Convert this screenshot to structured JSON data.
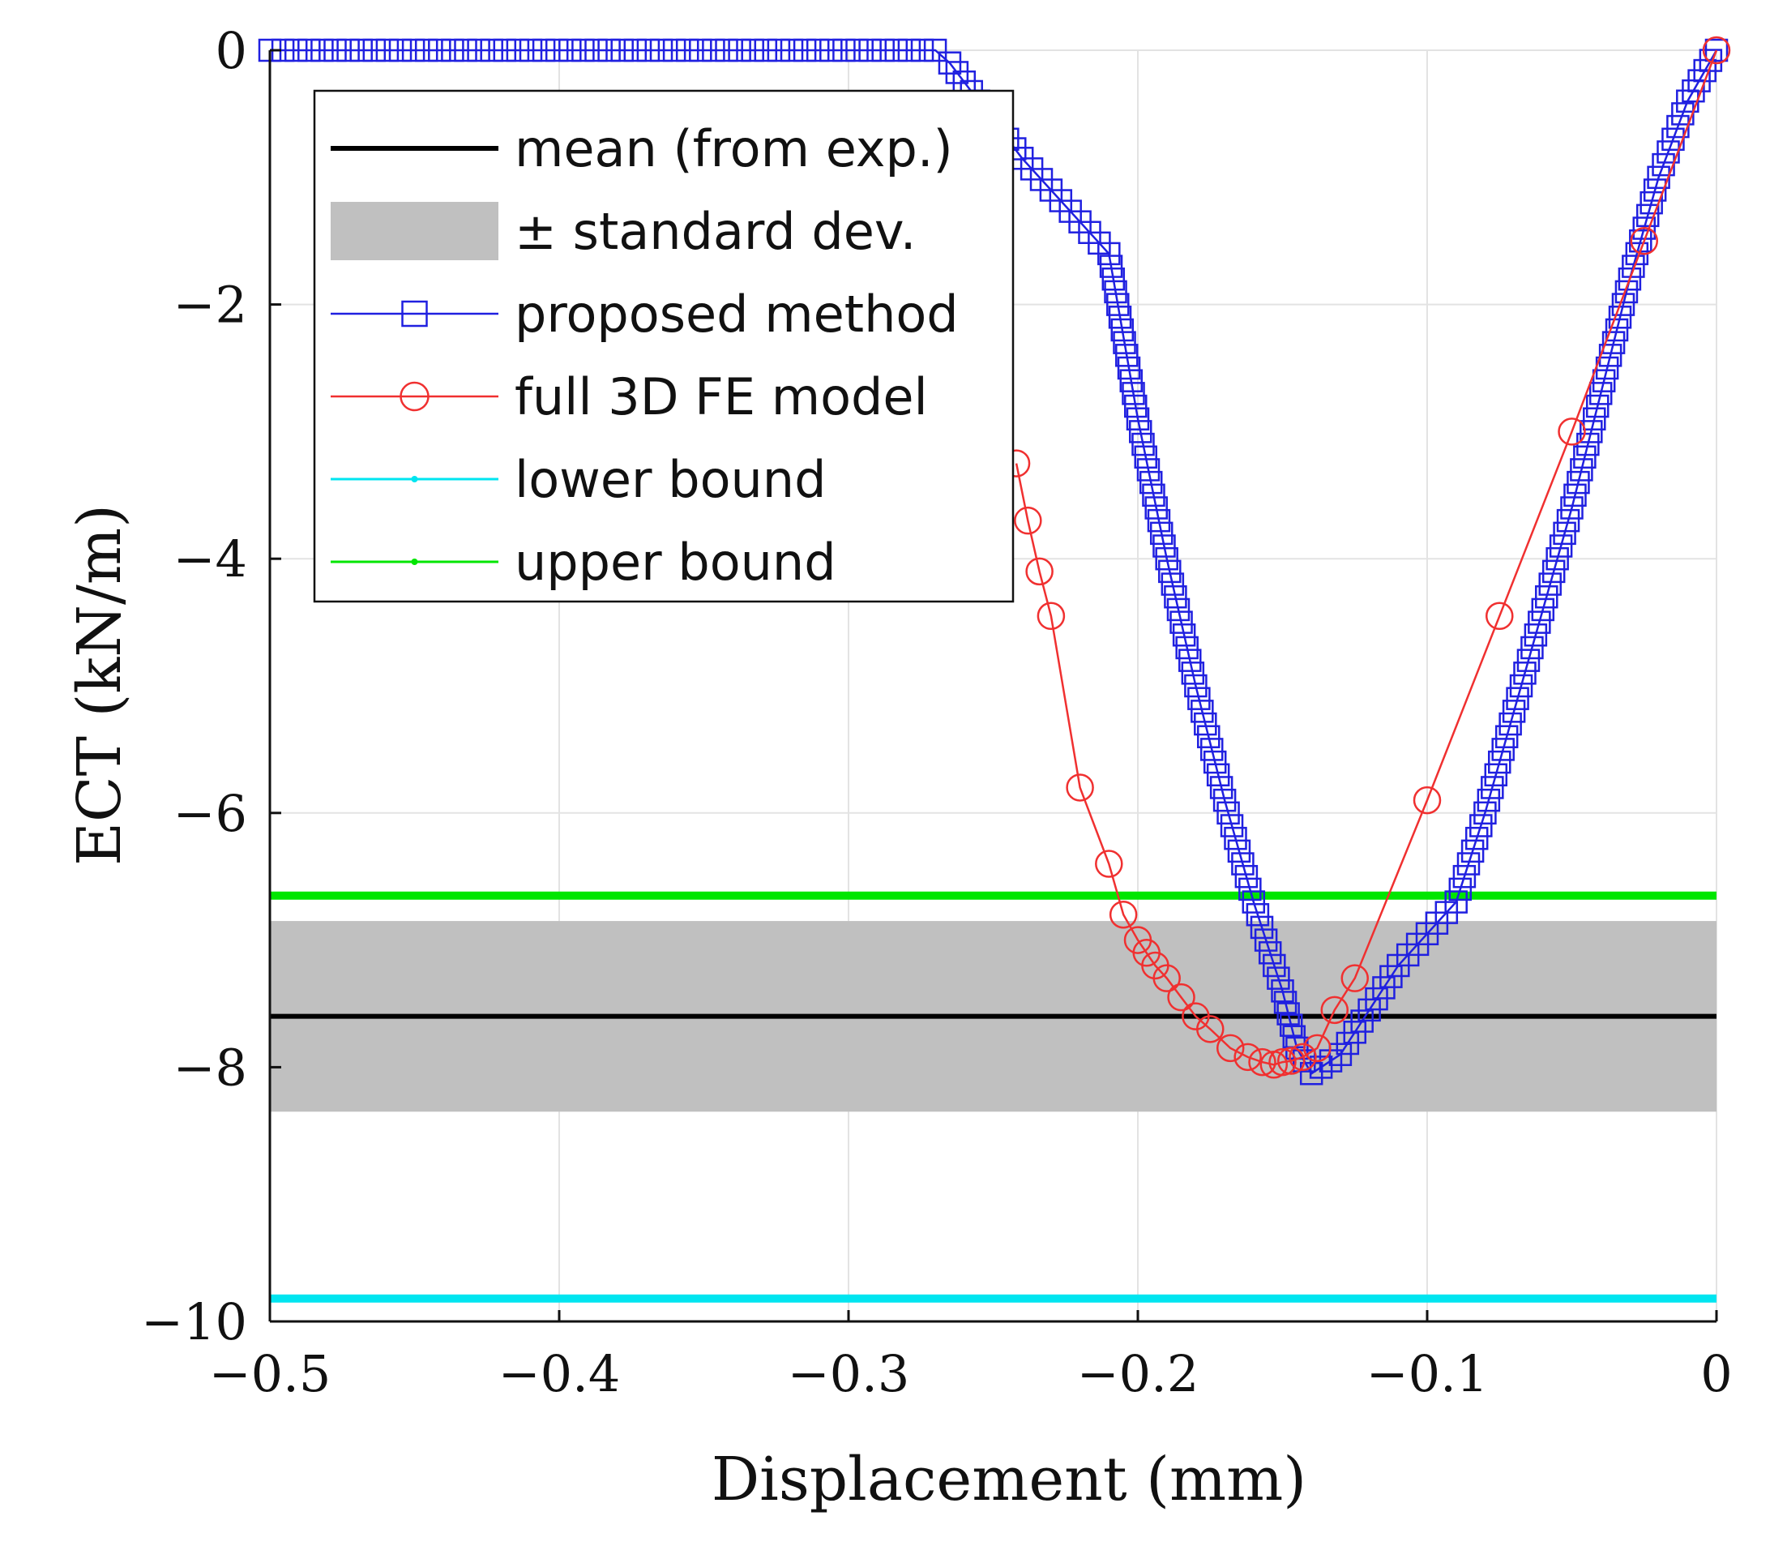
{
  "chart_data": {
    "type": "line",
    "xlabel": "Displacement (mm)",
    "ylabel": "ECT (kN/m)",
    "xlim": [
      -0.5,
      0
    ],
    "ylim": [
      -10,
      0
    ],
    "grid": true,
    "x_ticks": [
      -0.5,
      -0.4,
      -0.3,
      -0.2,
      -0.1,
      0
    ],
    "y_ticks": [
      0,
      -2,
      -4,
      -6,
      -8,
      -10
    ],
    "x_tick_labels": [
      "−0.5",
      "−0.4",
      "−0.3",
      "−0.2",
      "−0.1",
      "0"
    ],
    "y_tick_labels": [
      "0",
      "−2",
      "−4",
      "−6",
      "−8",
      "−10"
    ],
    "legend_position": "top-left",
    "reference_lines": {
      "mean": {
        "label": "mean (from exp.)",
        "y": -7.6,
        "color": "#000000"
      },
      "std_band": {
        "label": "± standard dev.",
        "y_range": [
          -8.35,
          -6.85
        ],
        "color": "#c0c0c0"
      },
      "lower_bound": {
        "label": "lower bound",
        "y": -9.82,
        "color": "#00e5f0"
      },
      "upper_bound": {
        "label": "upper bound",
        "y": -6.65,
        "color": "#00e600"
      }
    },
    "series": [
      {
        "name": "proposed method",
        "color": "#2020e0",
        "marker": "square",
        "points": [
          [
            -0.5,
            0
          ],
          [
            -0.27,
            0
          ],
          [
            -0.265,
            -0.1
          ],
          [
            -0.26,
            -0.25
          ],
          [
            -0.25,
            -0.55
          ],
          [
            -0.24,
            -0.85
          ],
          [
            -0.23,
            -1.1
          ],
          [
            -0.22,
            -1.35
          ],
          [
            -0.21,
            -1.6
          ],
          [
            -0.2,
            -2.9
          ],
          [
            -0.19,
            -4.0
          ],
          [
            -0.18,
            -5.0
          ],
          [
            -0.17,
            -5.9
          ],
          [
            -0.16,
            -6.7
          ],
          [
            -0.15,
            -7.4
          ],
          [
            -0.145,
            -7.85
          ],
          [
            -0.14,
            -8.05
          ],
          [
            -0.13,
            -7.9
          ],
          [
            -0.12,
            -7.55
          ],
          [
            -0.11,
            -7.2
          ],
          [
            -0.1,
            -6.95
          ],
          [
            -0.09,
            -6.7
          ],
          [
            -0.08,
            -6.0
          ],
          [
            -0.07,
            -5.2
          ],
          [
            -0.06,
            -4.4
          ],
          [
            -0.05,
            -3.6
          ],
          [
            -0.04,
            -2.7
          ],
          [
            -0.03,
            -1.8
          ],
          [
            -0.02,
            -1.0
          ],
          [
            -0.01,
            -0.4
          ],
          [
            0,
            0
          ]
        ]
      },
      {
        "name": "full 3D FE model",
        "color": "#f03030",
        "marker": "circle",
        "points": [
          [
            -0.242,
            -3.25
          ],
          [
            -0.238,
            -3.7
          ],
          [
            -0.234,
            -4.1
          ],
          [
            -0.23,
            -4.45
          ],
          [
            -0.22,
            -5.8
          ],
          [
            -0.21,
            -6.4
          ],
          [
            -0.205,
            -6.8
          ],
          [
            -0.2,
            -7.0
          ],
          [
            -0.197,
            -7.1
          ],
          [
            -0.194,
            -7.2
          ],
          [
            -0.19,
            -7.3
          ],
          [
            -0.185,
            -7.45
          ],
          [
            -0.18,
            -7.6
          ],
          [
            -0.175,
            -7.7
          ],
          [
            -0.168,
            -7.85
          ],
          [
            -0.162,
            -7.92
          ],
          [
            -0.157,
            -7.96
          ],
          [
            -0.153,
            -7.98
          ],
          [
            -0.15,
            -7.96
          ],
          [
            -0.147,
            -7.95
          ],
          [
            -0.143,
            -7.92
          ],
          [
            -0.138,
            -7.85
          ],
          [
            -0.132,
            -7.55
          ],
          [
            -0.125,
            -7.3
          ],
          [
            -0.1,
            -5.9
          ],
          [
            -0.075,
            -4.45
          ],
          [
            -0.05,
            -3.0
          ],
          [
            -0.025,
            -1.5
          ],
          [
            0,
            0
          ]
        ]
      }
    ],
    "legend": [
      {
        "label": "mean (from exp.)",
        "key": "mean"
      },
      {
        "label": "± standard dev.",
        "key": "std"
      },
      {
        "label": "proposed method",
        "key": "proposed"
      },
      {
        "label": "full 3D FE model",
        "key": "fe"
      },
      {
        "label": "lower bound",
        "key": "lower"
      },
      {
        "label": "upper bound",
        "key": "upper"
      }
    ]
  }
}
